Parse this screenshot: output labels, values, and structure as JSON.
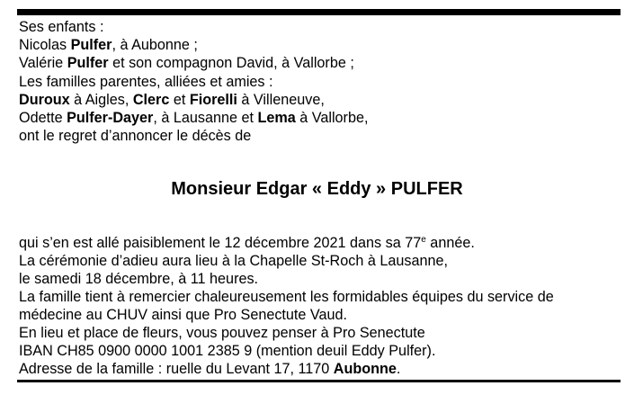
{
  "intro_lines": [
    [
      {
        "t": "Ses enfants :"
      }
    ],
    [
      {
        "t": "Nicolas "
      },
      {
        "t": "Pulfer",
        "b": true
      },
      {
        "t": ", à Aubonne ;"
      }
    ],
    [
      {
        "t": "Valérie "
      },
      {
        "t": "Pulfer",
        "b": true
      },
      {
        "t": " et son compagnon David, à Vallorbe ;"
      }
    ],
    [
      {
        "t": "Les familles parentes, alliées et amies :"
      }
    ],
    [
      {
        "t": "Duroux",
        "b": true
      },
      {
        "t": " à Aigles, "
      },
      {
        "t": "Clerc",
        "b": true
      },
      {
        "t": " et "
      },
      {
        "t": "Fiorelli",
        "b": true
      },
      {
        "t": " à Villeneuve,"
      }
    ],
    [
      {
        "t": "Odette "
      },
      {
        "t": "Pulfer-Dayer",
        "b": true
      },
      {
        "t": ", à Lausanne et "
      },
      {
        "t": "Lema",
        "b": true
      },
      {
        "t": " à Vallorbe,"
      }
    ],
    [
      {
        "t": "ont le regret d’annoncer le décès de"
      }
    ]
  ],
  "deceased_name": "Monsieur Edgar « Eddy » PULFER",
  "details_lines": [
    [
      {
        "t": "qui s’en est allé paisiblement le 12 décembre 2021 dans sa 77"
      },
      {
        "t": "e",
        "sup": true
      },
      {
        "t": " année."
      }
    ],
    [
      {
        "t": "La cérémonie d’adieu aura lieu à la Chapelle St-Roch à Lausanne,"
      }
    ],
    [
      {
        "t": "le samedi 18 décembre, à 11 heures."
      }
    ],
    [
      {
        "t": "La famille tient à remercier chaleureusement les formidables équipes du service de"
      }
    ],
    [
      {
        "t": "médecine au CHUV ainsi que Pro Senectute Vaud."
      }
    ],
    [
      {
        "t": "En lieu et place de fleurs, vous pouvez penser à Pro Senectute"
      }
    ],
    [
      {
        "t": "IBAN CH85 0900 0000 1001 2385 9 (mention deuil Eddy Pulfer)."
      }
    ],
    [
      {
        "t": "Adresse de la famille : ruelle du Levant 17, 1170 "
      },
      {
        "t": "Aubonne",
        "b": true
      },
      {
        "t": "."
      }
    ]
  ]
}
